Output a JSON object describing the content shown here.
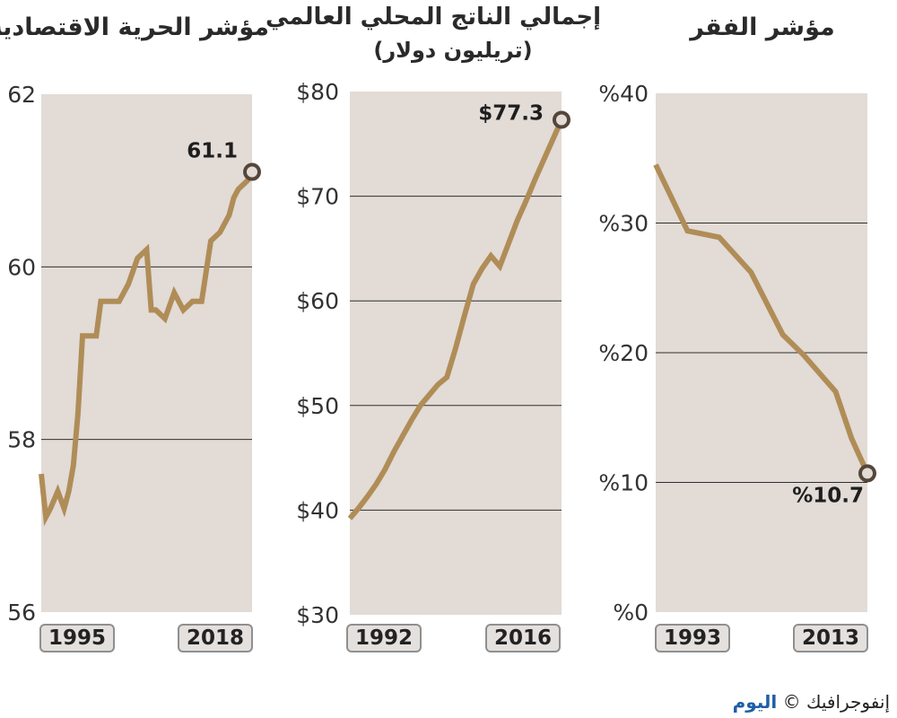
{
  "panels": {
    "freedom": {
      "title": "مؤشر الحرية الاقتصادية",
      "subtitle": ""
    },
    "gdp": {
      "title": "إجمالي الناتج المحلي العالمي",
      "subtitle": "(تريليون دولار)"
    },
    "poverty": {
      "title": "مؤشر الفقر",
      "subtitle": ""
    }
  },
  "footer": {
    "copyright": "©",
    "brand": "اليوم",
    "label": "إنفوجرافيك"
  },
  "colors": {
    "line": "#b08d57",
    "plot_bg": "#e2dbd6",
    "grid": "#2f2f2f",
    "marker_fill": "#e2dbd6",
    "marker_stroke": "#55463a",
    "axis_box_bg": "#e4e0dd"
  },
  "chart_data": [
    {
      "id": "freedom",
      "type": "line",
      "title": "مؤشر الحرية الاقتصادية",
      "x_start_label": "1995",
      "x_end_label": "2018",
      "ylim": [
        56,
        62
      ],
      "yticks": [
        56,
        58,
        60,
        62
      ],
      "ytick_labels": [
        "56",
        "58",
        "60",
        "62"
      ],
      "grid": true,
      "end_label": "61.1",
      "series": [
        {
          "x": [
            1995,
            1995.5,
            1996,
            1996.8,
            1997.5,
            1998,
            1998.5,
            1999,
            1999.5,
            2000,
            2001,
            2001.5,
            2002.5,
            2003.5,
            2004.5,
            2005.5,
            2006.5,
            2007,
            2007.5,
            2008.5,
            2009.5,
            2010.5,
            2011.5,
            2012.5,
            2013.5,
            2014.5,
            2015.5,
            2016,
            2016.5,
            2017.5,
            2018
          ],
          "y": [
            57.6,
            57.1,
            57.2,
            57.4,
            57.2,
            57.4,
            57.7,
            58.3,
            59.2,
            59.2,
            59.2,
            59.6,
            59.6,
            59.6,
            59.8,
            60.1,
            60.2,
            59.5,
            59.5,
            59.4,
            59.7,
            59.5,
            59.6,
            59.6,
            60.3,
            60.4,
            60.6,
            60.8,
            60.9,
            61.0,
            61.1
          ]
        }
      ]
    },
    {
      "id": "gdp",
      "type": "line",
      "title": "إجمالي الناتج المحلي العالمي",
      "subtitle": "(تريليون دولار)",
      "x_start_label": "1992",
      "x_end_label": "2016",
      "ylim": [
        30,
        80
      ],
      "yticks": [
        30,
        40,
        50,
        60,
        70,
        80
      ],
      "ytick_labels": [
        "$30",
        "$40",
        "$50",
        "$60",
        "$70",
        "$80"
      ],
      "grid": true,
      "end_label": "$77.3",
      "series": [
        {
          "x": [
            1992,
            1993,
            1994,
            1995,
            1996,
            1997,
            1998,
            1999,
            2000,
            2001,
            2002,
            2003,
            2004,
            2005,
            2006,
            2007,
            2008,
            2009,
            2010,
            2011,
            2012,
            2013,
            2014,
            2015,
            2016
          ],
          "y": [
            39.2,
            40.2,
            41.3,
            42.5,
            43.9,
            45.6,
            47.1,
            48.6,
            50.0,
            51.0,
            52.0,
            52.7,
            55.5,
            58.6,
            61.6,
            63.1,
            64.3,
            63.3,
            65.5,
            67.7,
            69.6,
            71.6,
            73.5,
            75.4,
            77.3
          ]
        }
      ]
    },
    {
      "id": "poverty",
      "type": "line",
      "title": "مؤشر الفقر",
      "x_start_label": "1993",
      "x_end_label": "2013",
      "ylim": [
        0,
        40
      ],
      "yticks": [
        0,
        10,
        20,
        30,
        40
      ],
      "ytick_labels": [
        "%0",
        "%10",
        "%20",
        "%30",
        "%40"
      ],
      "grid": true,
      "end_label": "%10.7",
      "series": [
        {
          "x": [
            1993,
            1996,
            1999,
            2002,
            2005,
            2007,
            2010,
            2011.5,
            2013
          ],
          "y": [
            34.5,
            29.4,
            28.9,
            26.2,
            21.4,
            19.8,
            17.0,
            13.4,
            10.7
          ]
        }
      ]
    }
  ]
}
